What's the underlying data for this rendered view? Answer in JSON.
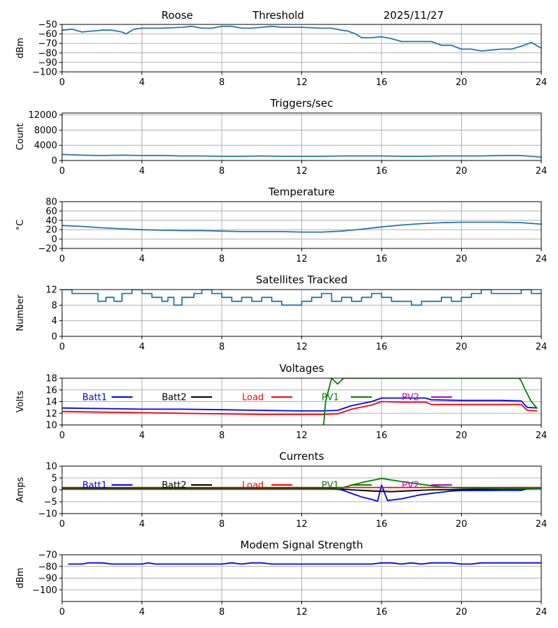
{
  "header": {
    "station": "Roose",
    "mode": "Threshold",
    "date": "2025/11/27"
  },
  "colors": {
    "series_default": "#1f77b4",
    "batt1": "#0000ff",
    "batt2": "#000000",
    "load": "#ff0000",
    "pv1": "#008000",
    "pv2": "#bf00bf",
    "grid": "#b0b0b0"
  },
  "chart_data": [
    {
      "name": "signal",
      "type": "line",
      "title": "",
      "ylabel": "dBm",
      "xlim": [
        0,
        24
      ],
      "xticks": [
        0,
        4,
        8,
        12,
        16,
        20,
        24
      ],
      "ylim": [
        -100,
        -50
      ],
      "yticks": [
        -100,
        -90,
        -80,
        -70,
        -60,
        -50
      ],
      "grid": true,
      "series": [
        {
          "color": "#1f77b4",
          "x": [
            0,
            0.5,
            1,
            1.5,
            2,
            2.5,
            3,
            3.2,
            3.6,
            4,
            5,
            6,
            6.5,
            7,
            7.5,
            8,
            8.5,
            9,
            9.5,
            10,
            10.5,
            11,
            12,
            13,
            13.5,
            14,
            14.3,
            14.7,
            15,
            15.5,
            16,
            16.5,
            17,
            17.5,
            18,
            18.5,
            19,
            19.5,
            20,
            20.5,
            21,
            21.5,
            22,
            22.5,
            23,
            23.5,
            24
          ],
          "y": [
            -56,
            -55,
            -58,
            -57,
            -56,
            -56,
            -58,
            -60,
            -55,
            -54,
            -54,
            -53,
            -52,
            -54,
            -54,
            -52,
            -52,
            -54,
            -54,
            -53,
            -52,
            -53,
            -53,
            -54,
            -54,
            -56,
            -57,
            -60,
            -64,
            -64,
            -63,
            -65,
            -68,
            -68,
            -68,
            -68,
            -72,
            -72,
            -76,
            -76,
            -78,
            -77,
            -76,
            -76,
            -73,
            -69,
            -75
          ]
        }
      ]
    },
    {
      "name": "triggers",
      "type": "line",
      "title": "Triggers/sec",
      "ylabel": "Count",
      "xlim": [
        0,
        24
      ],
      "xticks": [
        0,
        4,
        8,
        12,
        16,
        20,
        24
      ],
      "ylim": [
        0,
        12500
      ],
      "yticks": [
        0,
        4000,
        8000,
        12000
      ],
      "grid": true,
      "series": [
        {
          "color": "#1f77b4",
          "x": [
            0,
            1,
            2,
            3,
            4,
            5,
            6,
            7,
            8,
            9,
            10,
            11,
            12,
            13,
            14,
            15,
            16,
            17,
            18,
            19,
            20,
            21,
            22,
            23,
            24
          ],
          "y": [
            1600,
            1400,
            1300,
            1400,
            1300,
            1300,
            1200,
            1200,
            1100,
            1100,
            1200,
            1100,
            1100,
            1100,
            1200,
            1200,
            1200,
            1100,
            1100,
            1200,
            1200,
            1200,
            1300,
            1300,
            900
          ]
        }
      ]
    },
    {
      "name": "temperature",
      "type": "line",
      "title": "Temperature",
      "ylabel": "°C",
      "xlim": [
        0,
        24
      ],
      "xticks": [
        0,
        4,
        8,
        12,
        16,
        20,
        24
      ],
      "ylim": [
        -20,
        80
      ],
      "yticks": [
        -20,
        0,
        20,
        40,
        60,
        80
      ],
      "grid": true,
      "series": [
        {
          "color": "#1f77b4",
          "x": [
            0,
            1,
            2,
            3,
            4,
            5,
            6,
            7,
            8,
            9,
            10,
            11,
            12,
            13,
            14,
            15,
            16,
            17,
            18,
            19,
            20,
            21,
            22,
            23,
            24
          ],
          "y": [
            29,
            27,
            24,
            22,
            20,
            19,
            18,
            18,
            17,
            16,
            16,
            16,
            15,
            15,
            17,
            21,
            26,
            30,
            33,
            35,
            36,
            36,
            36,
            35,
            32
          ]
        }
      ]
    },
    {
      "name": "satellites",
      "type": "line",
      "title": "Satellites Tracked",
      "ylabel": "Number",
      "xlim": [
        0,
        24
      ],
      "xticks": [
        0,
        4,
        8,
        12,
        16,
        20,
        24
      ],
      "ylim": [
        0,
        12
      ],
      "yticks": [
        0,
        4,
        8,
        12
      ],
      "grid": true,
      "series": [
        {
          "color": "#1f77b4",
          "step": true,
          "x": [
            0,
            0.5,
            1.5,
            1.8,
            2.2,
            2.6,
            3,
            3.5,
            4,
            4.5,
            5,
            5.3,
            5.6,
            6,
            6.6,
            7,
            7.5,
            8,
            8.5,
            9,
            9.5,
            10,
            10.5,
            11,
            11.5,
            12,
            12.5,
            13,
            13.5,
            14,
            14.5,
            15,
            15.5,
            16,
            16.5,
            17,
            17.5,
            18,
            18.5,
            19,
            19.5,
            20,
            20.5,
            21,
            21.5,
            22,
            22.5,
            23,
            23.5,
            24
          ],
          "y": [
            12,
            11,
            11,
            9,
            10,
            9,
            11,
            12,
            11,
            10,
            9,
            10,
            8,
            10,
            11,
            12,
            11,
            10,
            9,
            10,
            9,
            10,
            9,
            8,
            8,
            9,
            10,
            11,
            9,
            10,
            9,
            10,
            11,
            10,
            9,
            9,
            8,
            9,
            9,
            10,
            9,
            10,
            11,
            12,
            11,
            11,
            11,
            12,
            11,
            11
          ]
        }
      ]
    },
    {
      "name": "voltages",
      "type": "line",
      "title": "Voltages",
      "ylabel": "Volts",
      "xlim": [
        0,
        24
      ],
      "xticks": [
        0,
        4,
        8,
        12,
        16,
        20,
        24
      ],
      "ylim": [
        10,
        18
      ],
      "yticks": [
        10,
        12,
        14,
        16,
        18
      ],
      "grid": true,
      "legend": [
        "Batt1",
        "Batt2",
        "Load",
        "PV1",
        "PV2"
      ],
      "legend_placement": "top",
      "series": [
        {
          "name": "Batt1",
          "color": "#0000ff",
          "x": [
            0,
            2,
            4,
            6,
            8,
            10,
            12,
            13,
            13.8,
            14.5,
            15.5,
            16,
            17,
            18.2,
            18.5,
            20,
            22,
            23,
            23.3,
            23.8
          ],
          "y": [
            12.9,
            12.8,
            12.7,
            12.7,
            12.6,
            12.5,
            12.4,
            12.4,
            12.5,
            13.3,
            14.0,
            14.6,
            14.6,
            14.6,
            14.3,
            14.2,
            14.2,
            14.1,
            13.0,
            12.9
          ]
        },
        {
          "name": "Batt2",
          "color": "#000000",
          "x": [],
          "y": []
        },
        {
          "name": "Load",
          "color": "#ff0000",
          "x": [
            0,
            2,
            4,
            6,
            8,
            10,
            12,
            13,
            13.8,
            14.5,
            15.5,
            16,
            17,
            18.2,
            18.5,
            20,
            22,
            23,
            23.3,
            23.8
          ],
          "y": [
            12.3,
            12.2,
            12.1,
            12.0,
            11.9,
            11.8,
            11.8,
            11.8,
            11.9,
            12.7,
            13.4,
            14.0,
            13.9,
            13.9,
            13.5,
            13.5,
            13.5,
            13.5,
            12.5,
            12.4
          ]
        },
        {
          "name": "PV1",
          "color": "#008000",
          "x": [
            13.1,
            13.2,
            13.5,
            13.8,
            14.1,
            22.9,
            23.0,
            23.2,
            23.5,
            23.8
          ],
          "y": [
            10,
            14,
            18,
            17,
            18,
            18,
            17.5,
            16.0,
            14.0,
            12.8
          ]
        },
        {
          "name": "PV2",
          "color": "#bf00bf",
          "x": [],
          "y": []
        }
      ]
    },
    {
      "name": "currents",
      "type": "line",
      "title": "Currents",
      "ylabel": "Amps",
      "xlim": [
        0,
        24
      ],
      "xticks": [
        0,
        4,
        8,
        12,
        16,
        20,
        24
      ],
      "ylim": [
        -10,
        10
      ],
      "yticks": [
        -10,
        -5,
        0,
        5,
        10
      ],
      "grid": true,
      "legend": [
        "Batt1",
        "Batt2",
        "Load",
        "PV1",
        "PV2"
      ],
      "legend_placement": "top",
      "series": [
        {
          "name": "Batt1",
          "color": "#0000ff",
          "x": [
            0,
            13.5,
            14,
            14.5,
            15,
            15.5,
            15.8,
            16,
            16.3,
            17,
            18,
            19,
            19.5,
            20,
            21,
            22,
            23,
            23.3,
            23.8
          ],
          "y": [
            0.4,
            0.4,
            0.0,
            -1.5,
            -3.0,
            -4.0,
            -4.8,
            2.0,
            -4.5,
            -3.8,
            -2.0,
            -1.0,
            -0.5,
            -0.3,
            -0.3,
            -0.2,
            -0.2,
            0.5,
            0.8
          ]
        },
        {
          "name": "Batt2",
          "color": "#000000",
          "x": [
            0,
            13.8,
            14.5,
            15.5,
            16.5,
            17.5,
            18.5,
            24
          ],
          "y": [
            0.5,
            0.5,
            0.0,
            -0.5,
            -0.8,
            -0.4,
            0.0,
            0.5
          ]
        },
        {
          "name": "Load",
          "color": "#ff0000",
          "x": [
            0,
            24
          ],
          "y": [
            1.0,
            1.0
          ]
        },
        {
          "name": "PV1",
          "color": "#008000",
          "x": [
            0,
            13.8,
            14.5,
            15.2,
            16,
            17,
            18,
            19,
            20,
            22,
            23,
            24
          ],
          "y": [
            0.3,
            0.3,
            2.0,
            3.4,
            4.8,
            3.5,
            2.3,
            1.2,
            0.8,
            0.6,
            0.6,
            0.6
          ]
        },
        {
          "name": "PV2",
          "color": "#bf00bf",
          "x": [],
          "y": []
        }
      ]
    },
    {
      "name": "modem",
      "type": "line",
      "title": "Modem Signal Strength",
      "ylabel": "dBm",
      "xlim": [
        0,
        24
      ],
      "xticks": [
        0,
        4,
        8,
        12,
        16,
        20,
        24
      ],
      "ylim": [
        -110,
        -70
      ],
      "yticks": [
        -100,
        -90,
        -80,
        -70
      ],
      "grid": true,
      "series": [
        {
          "color": "#0000ff",
          "x": [
            0.3,
            1,
            1.3,
            2,
            2.5,
            3,
            3.5,
            4,
            4.3,
            4.7,
            5,
            6,
            7,
            8,
            8.5,
            9,
            9.5,
            10,
            10.5,
            11,
            12,
            13,
            14,
            15,
            15.5,
            16,
            16.5,
            17,
            17.5,
            18,
            18.5,
            19,
            19.5,
            20,
            20.5,
            21,
            21.5,
            22,
            23,
            23.5,
            24
          ],
          "y": [
            -78,
            -78,
            -77,
            -77,
            -78,
            -78,
            -78,
            -78,
            -77,
            -78,
            -78,
            -78,
            -78,
            -78,
            -77,
            -78,
            -77,
            -77,
            -78,
            -78,
            -78,
            -78,
            -78,
            -78,
            -78,
            -77,
            -77,
            -78,
            -77,
            -78,
            -77,
            -77,
            -77,
            -78,
            -78,
            -77,
            -77,
            -77,
            -77,
            -77,
            -77
          ]
        }
      ]
    }
  ]
}
